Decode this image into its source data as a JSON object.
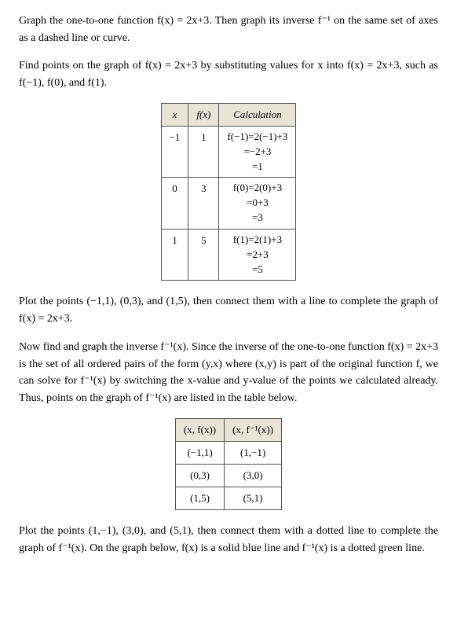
{
  "p1": "Graph the one-to-one function f(x) = 2x+3. Then graph its inverse f⁻¹ on the same set of axes as a dashed line or curve.",
  "p2": "Find points on the graph of f(x) = 2x+3 by substituting values for x into f(x) = 2x+3, such as f(−1), f(0), and f(1).",
  "t1": {
    "headers": {
      "x": "x",
      "fx": "f(x)",
      "calc": "Calculation"
    },
    "rows": [
      {
        "x": "−1",
        "fx": "1",
        "c1": "f(−1)=2(−1)+3",
        "c2": "=−2+3",
        "c3": "=1"
      },
      {
        "x": "0",
        "fx": "3",
        "c1": "f(0)=2(0)+3",
        "c2": "=0+3",
        "c3": "=3"
      },
      {
        "x": "1",
        "fx": "5",
        "c1": "f(1)=2(1)+3",
        "c2": "=2+3",
        "c3": "=5"
      }
    ]
  },
  "p3": "Plot the points (−1,1), (0,3), and (1,5), then connect them with a line to complete the graph of f(x) = 2x+3.",
  "p4": "Now find and graph the inverse f⁻¹(x). Since the inverse of the one-to-one function f(x) = 2x+3 is the set of all ordered pairs of the form (y,x) where (x,y) is part of the original function f, we can solve for f⁻¹(x) by switching the x-value and y-value of the points we calculated already. Thus, points on the graph of f⁻¹(x) are listed in the table below.",
  "t2": {
    "headers": {
      "a": "(x, f(x))",
      "b": "(x, f⁻¹(x))"
    },
    "rows": [
      {
        "a": "(−1,1)",
        "b": "(1,−1)"
      },
      {
        "a": "(0,3)",
        "b": "(3,0)"
      },
      {
        "a": "(1,5)",
        "b": "(5,1)"
      }
    ]
  },
  "p5": "Plot the points (1,−1), (3,0), and (5,1), then connect them with a dotted line to complete the graph of f⁻¹(x). On the graph below, f(x) is a solid blue line and f⁻¹(x) is a dotted green line.",
  "styles": {
    "body_fontsize": 14,
    "table_fontsize": 13,
    "header_bg": "#e8e5d6",
    "border_color": "#555555",
    "text_color": "#000000",
    "background_color": "#ffffff"
  }
}
